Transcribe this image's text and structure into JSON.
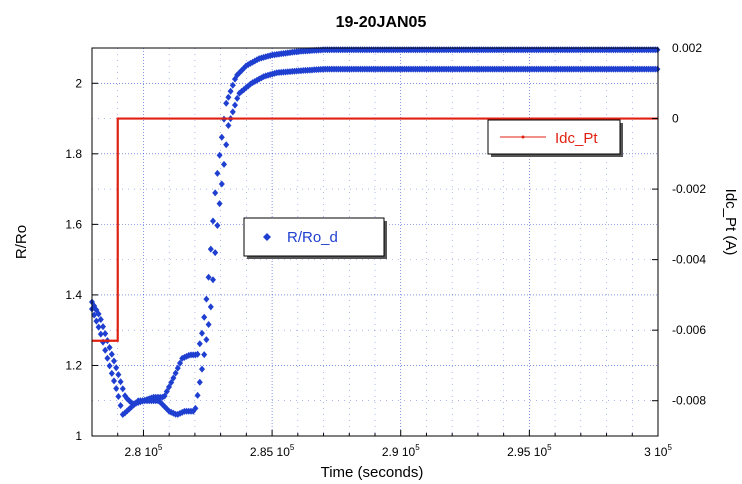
{
  "chart_data": {
    "type": "scatter",
    "title": "19-20JAN05",
    "xlabel": "Time (seconds)",
    "ylabel": "R/Ro",
    "y2label": "Idc_Pt (A)",
    "xlim": [
      278000,
      300000
    ],
    "ylim": [
      1,
      2.1
    ],
    "y2lim": [
      -0.009,
      0.002
    ],
    "x_ticks": [
      {
        "value": 280000,
        "mant": "2.8",
        "exp": "5"
      },
      {
        "value": 285000,
        "mant": "2.85",
        "exp": "5"
      },
      {
        "value": 290000,
        "mant": "2.9",
        "exp": "5"
      },
      {
        "value": 295000,
        "mant": "2.95",
        "exp": "5"
      },
      {
        "value": 300000,
        "mant": "3",
        "exp": "5"
      }
    ],
    "y_ticks": [
      {
        "value": 1,
        "label": "1"
      },
      {
        "value": 1.2,
        "label": "1.2"
      },
      {
        "value": 1.4,
        "label": "1.4"
      },
      {
        "value": 1.6,
        "label": "1.6"
      },
      {
        "value": 1.8,
        "label": "1.8"
      },
      {
        "value": 2,
        "label": "2"
      }
    ],
    "y2_ticks": [
      {
        "value": 0.002,
        "label": "0.002"
      },
      {
        "value": 0,
        "label": "0"
      },
      {
        "value": -0.002,
        "label": "-0.002"
      },
      {
        "value": -0.004,
        "label": "-0.004"
      },
      {
        "value": -0.006,
        "label": "-0.006"
      },
      {
        "value": -0.008,
        "label": "-0.008"
      }
    ],
    "grid": true,
    "colors": {
      "r_ro": "#1f3fd0",
      "idc": "#e02010",
      "grid": "#1f3fd0"
    },
    "series": [
      {
        "name": "R/Ro_d",
        "axis": "left",
        "marker": "diamond",
        "upper_x": [
          278000,
          278300,
          278600,
          279000,
          279300,
          279600,
          280000,
          280400,
          280800,
          281200,
          281500,
          281800,
          282100,
          282300,
          282500,
          282800,
          283200,
          283600,
          284000,
          284500,
          285000,
          285500,
          286000,
          287000,
          288000,
          289000,
          290000,
          300000
        ],
        "upper_y": [
          1.38,
          1.34,
          1.27,
          1.18,
          1.11,
          1.09,
          1.1,
          1.11,
          1.11,
          1.17,
          1.22,
          1.23,
          1.23,
          1.3,
          1.42,
          1.7,
          1.94,
          2.02,
          2.05,
          2.07,
          2.08,
          2.085,
          2.09,
          2.095,
          2.095,
          2.095,
          2.095,
          2.095
        ],
        "lower_x": [
          278000,
          278300,
          278600,
          279000,
          279200,
          279500,
          279800,
          280200,
          280600,
          281000,
          281300,
          281600,
          282000,
          282300,
          282600,
          282900,
          283300,
          283700,
          284200,
          284700,
          285200,
          286000,
          287000,
          288000,
          289000,
          300000
        ],
        "lower_y": [
          1.36,
          1.3,
          1.22,
          1.12,
          1.06,
          1.08,
          1.1,
          1.1,
          1.1,
          1.07,
          1.06,
          1.07,
          1.07,
          1.2,
          1.35,
          1.62,
          1.88,
          1.97,
          2.0,
          2.02,
          2.03,
          2.035,
          2.04,
          2.04,
          2.04,
          2.04
        ]
      },
      {
        "name": "Idc_Pt",
        "axis": "right",
        "x": [
          278000,
          279000,
          279000,
          300000
        ],
        "y": [
          -0.0063,
          -0.0063,
          0,
          0
        ]
      }
    ],
    "legends": [
      {
        "label": "R/Ro_d",
        "series": "R/Ro_d"
      },
      {
        "label": "Idc_Pt",
        "series": "Idc_Pt"
      }
    ]
  }
}
